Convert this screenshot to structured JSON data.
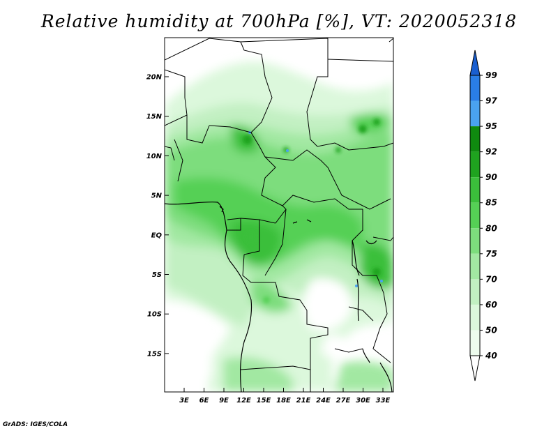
{
  "title": "Relative humidity at 700hPa [%], VT: 2020052318",
  "credit": "GrADS: IGES/COLA",
  "map": {
    "lat_ticks": [
      "20N",
      "15N",
      "10N",
      "5N",
      "EQ",
      "5S",
      "10S",
      "15S"
    ],
    "lon_ticks": [
      "3E",
      "6E",
      "9E",
      "12E",
      "15E",
      "18E",
      "21E",
      "24E",
      "27E",
      "30E",
      "33E"
    ]
  },
  "colorbar": {
    "labels": [
      "99",
      "97",
      "95",
      "92",
      "90",
      "85",
      "80",
      "75",
      "70",
      "60",
      "50",
      "40"
    ],
    "colors": [
      "#1a5fd0",
      "#2a7ee6",
      "#4aa3f0",
      "#0f8a0f",
      "#1fa31f",
      "#3bbf3b",
      "#55d055",
      "#7ddd7d",
      "#a2e8a2",
      "#c2f0c2",
      "#dcf8dc",
      "#eefcee",
      "#ffffff"
    ]
  }
}
